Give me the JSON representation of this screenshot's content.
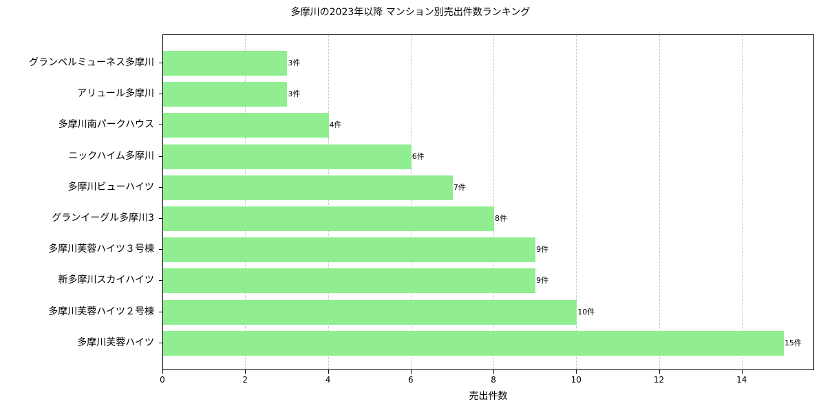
{
  "chart_data": {
    "type": "bar",
    "orientation": "horizontal",
    "title": "多摩川の2023年以降 マンション別売出件数ランキング",
    "xlabel": "売出件数",
    "ylabel": "",
    "xlim": [
      0,
      15.75
    ],
    "xticks": [
      "0",
      "2",
      "4",
      "6",
      "8",
      "10",
      "12",
      "14"
    ],
    "grid": {
      "x": true,
      "y": false,
      "style": "dashed"
    },
    "bar_color": "#90ee90",
    "value_suffix": "件",
    "categories": [
      "グランベルミューネス多摩川",
      "アリュール多摩川",
      "多摩川南パークハウス",
      "ニックハイム多摩川",
      "多摩川ビューハイツ",
      "グランイーグル多摩川3",
      "多摩川芙蓉ハイツ３号棟",
      "新多摩川スカイハイツ",
      "多摩川芙蓉ハイツ２号棟",
      "多摩川芙蓉ハイツ"
    ],
    "values": [
      3,
      3,
      4,
      6,
      7,
      8,
      9,
      9,
      10,
      15
    ],
    "data_labels": [
      "3件",
      "3件",
      "4件",
      "6件",
      "7件",
      "8件",
      "9件",
      "9件",
      "10件",
      "15件"
    ]
  }
}
